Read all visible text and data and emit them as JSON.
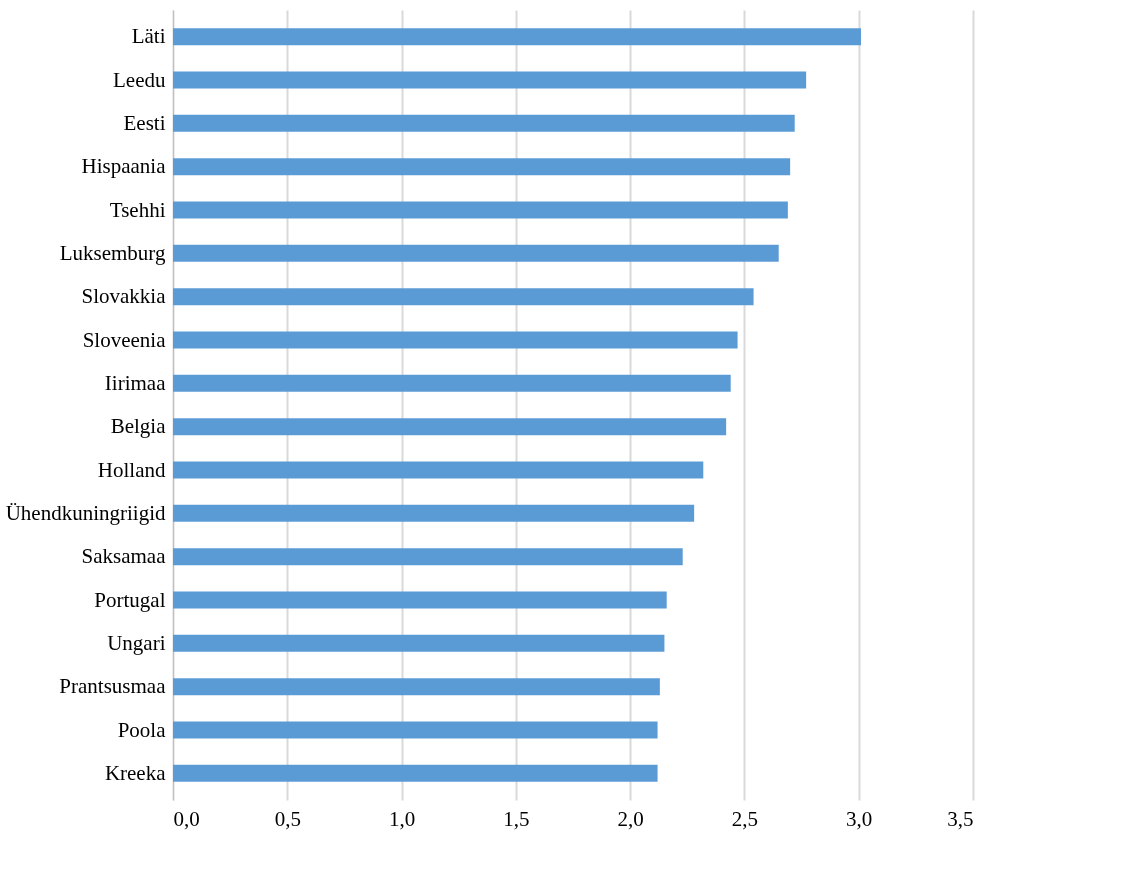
{
  "chart_data": {
    "type": "bar",
    "orientation": "horizontal",
    "categories": [
      "Läti",
      "Leedu",
      "Eesti",
      "Hispaania",
      "Tsehhi",
      "Luksemburg",
      "Slovakkia",
      "Sloveenia",
      "Iirimaa",
      "Belgia",
      "Holland",
      "Ühendkuningriigid",
      "Saksamaa",
      "Portugal",
      "Ungari",
      "Prantsusmaa",
      "Poola",
      "Kreeka"
    ],
    "values": [
      3.01,
      2.77,
      2.72,
      2.7,
      2.69,
      2.65,
      2.54,
      2.47,
      2.44,
      2.42,
      2.32,
      2.28,
      2.23,
      2.16,
      2.15,
      2.13,
      2.12,
      2.12
    ],
    "color": "#5b9bd5",
    "xlim": [
      0,
      3.5
    ],
    "xticks": [
      {
        "value": 0,
        "label": "0,0"
      },
      {
        "value": 0.5,
        "label": "0,5"
      },
      {
        "value": 1,
        "label": "1,0"
      },
      {
        "value": 1.5,
        "label": "1,5"
      },
      {
        "value": 2,
        "label": "2,0"
      },
      {
        "value": 2.5,
        "label": "2,5"
      },
      {
        "value": 3,
        "label": "3,0"
      },
      {
        "value": 3.5,
        "label": "3,5"
      }
    ],
    "grid": "x"
  }
}
